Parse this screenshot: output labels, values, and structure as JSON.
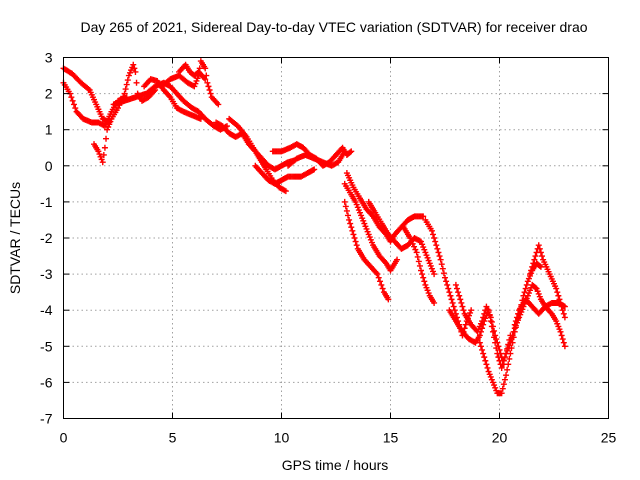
{
  "chart_data": {
    "type": "scatter",
    "title": "Day 265 of 2021, Sidereal Day-to-day VTEC variation (SDTVAR) for receiver drao",
    "xlabel": "GPS time / hours",
    "ylabel": "SDTVAR / TECUs",
    "xlim": [
      0,
      25
    ],
    "ylim": [
      -7,
      3
    ],
    "xticks": [
      "0",
      "5",
      "10",
      "15",
      "20",
      "25"
    ],
    "yticks": [
      "-7",
      "-6",
      "-5",
      "-4",
      "-3",
      "-2",
      "-1",
      "0",
      "1",
      "2",
      "3"
    ],
    "grid": true,
    "marker": "+",
    "color": "#ff0000",
    "series": [
      {
        "name": "SDTVAR",
        "segments": [
          [
            [
              0.0,
              2.7
            ],
            [
              0.4,
              2.55
            ],
            [
              0.8,
              2.3
            ],
            [
              1.2,
              2.1
            ],
            [
              1.5,
              1.7
            ],
            [
              1.8,
              1.3
            ],
            [
              2.1,
              1.2
            ]
          ],
          [
            [
              0.0,
              2.3
            ],
            [
              0.3,
              2.0
            ],
            [
              0.6,
              1.5
            ],
            [
              0.9,
              1.3
            ],
            [
              1.3,
              1.2
            ],
            [
              1.6,
              1.2
            ],
            [
              1.9,
              1.1
            ],
            [
              2.2,
              1.5
            ],
            [
              2.5,
              1.8
            ],
            [
              2.9,
              1.9
            ]
          ],
          [
            [
              1.4,
              0.6
            ],
            [
              1.6,
              0.4
            ],
            [
              1.8,
              0.1
            ],
            [
              1.9,
              0.5
            ],
            [
              2.0,
              1.0
            ],
            [
              2.2,
              1.3
            ],
            [
              2.5,
              1.6
            ],
            [
              2.8,
              2.0
            ],
            [
              3.0,
              2.5
            ],
            [
              3.2,
              2.8
            ],
            [
              3.3,
              2.6
            ],
            [
              3.4,
              2.0
            ],
            [
              3.6,
              1.8
            ],
            [
              3.9,
              1.9
            ],
            [
              4.2,
              2.1
            ]
          ],
          [
            [
              2.3,
              1.7
            ],
            [
              2.8,
              1.8
            ],
            [
              3.3,
              1.9
            ],
            [
              3.8,
              2.0
            ],
            [
              4.2,
              2.2
            ],
            [
              4.6,
              2.3
            ],
            [
              4.9,
              2.2
            ],
            [
              5.2,
              2.0
            ],
            [
              5.5,
              1.8
            ],
            [
              5.9,
              1.6
            ],
            [
              6.2,
              1.5
            ],
            [
              6.5,
              1.3
            ],
            [
              6.9,
              1.1
            ],
            [
              7.2,
              1.0
            ],
            [
              7.5,
              1.1
            ]
          ],
          [
            [
              3.7,
              2.2
            ],
            [
              4.0,
              2.4
            ],
            [
              4.3,
              2.35
            ],
            [
              4.6,
              2.1
            ],
            [
              4.9,
              1.9
            ],
            [
              5.2,
              1.6
            ],
            [
              5.5,
              1.5
            ],
            [
              5.9,
              1.4
            ],
            [
              6.3,
              1.3
            ]
          ],
          [
            [
              4.5,
              2.2
            ],
            [
              4.9,
              2.4
            ],
            [
              5.3,
              2.5
            ],
            [
              5.7,
              2.3
            ],
            [
              6.0,
              2.2
            ],
            [
              6.2,
              2.5
            ],
            [
              6.3,
              2.9
            ],
            [
              6.5,
              2.7
            ],
            [
              6.6,
              2.3
            ],
            [
              6.8,
              1.9
            ],
            [
              7.1,
              1.7
            ]
          ],
          [
            [
              5.3,
              2.6
            ],
            [
              5.6,
              2.8
            ],
            [
              5.8,
              2.6
            ],
            [
              6.0,
              2.5
            ],
            [
              6.2,
              2.6
            ],
            [
              6.5,
              2.4
            ]
          ],
          [
            [
              7.0,
              1.2
            ],
            [
              7.3,
              1.1
            ],
            [
              7.6,
              0.9
            ],
            [
              7.9,
              0.8
            ],
            [
              8.2,
              0.9
            ],
            [
              8.5,
              0.6
            ],
            [
              8.8,
              0.4
            ],
            [
              9.1,
              0.2
            ],
            [
              9.4,
              0.0
            ],
            [
              9.7,
              -0.1
            ],
            [
              10.0,
              0.0
            ],
            [
              10.3,
              0.1
            ],
            [
              10.6,
              0.15
            ]
          ],
          [
            [
              7.6,
              1.3
            ],
            [
              8.0,
              1.1
            ],
            [
              8.4,
              0.8
            ],
            [
              8.7,
              0.5
            ],
            [
              9.0,
              0.2
            ],
            [
              9.3,
              -0.1
            ],
            [
              9.6,
              -0.4
            ],
            [
              9.9,
              -0.6
            ],
            [
              10.2,
              -0.7
            ]
          ],
          [
            [
              8.8,
              0.0
            ],
            [
              9.1,
              -0.2
            ],
            [
              9.4,
              -0.4
            ],
            [
              9.7,
              -0.5
            ],
            [
              10.0,
              -0.4
            ],
            [
              10.3,
              -0.3
            ],
            [
              10.6,
              -0.3
            ],
            [
              10.9,
              -0.3
            ],
            [
              11.2,
              -0.2
            ],
            [
              11.5,
              -0.1
            ]
          ],
          [
            [
              9.6,
              0.4
            ],
            [
              10.0,
              0.4
            ],
            [
              10.4,
              0.5
            ],
            [
              10.7,
              0.6
            ],
            [
              11.0,
              0.5
            ],
            [
              11.3,
              0.3
            ],
            [
              11.6,
              0.2
            ],
            [
              11.9,
              0.0
            ],
            [
              12.2,
              0.1
            ],
            [
              12.5,
              0.3
            ],
            [
              12.8,
              0.5
            ],
            [
              13.0,
              0.3
            ],
            [
              13.2,
              0.4
            ]
          ],
          [
            [
              10.3,
              0.0
            ],
            [
              10.7,
              0.2
            ],
            [
              11.1,
              0.3
            ],
            [
              11.5,
              0.2
            ],
            [
              11.9,
              0.1
            ],
            [
              12.3,
              0.0
            ],
            [
              12.6,
              0.1
            ],
            [
              12.8,
              0.3
            ],
            [
              12.9,
              0.4
            ]
          ],
          [
            [
              12.9,
              -0.5
            ],
            [
              13.2,
              -0.8
            ],
            [
              13.4,
              -1.0
            ],
            [
              13.6,
              -1.3
            ],
            [
              13.8,
              -1.6
            ],
            [
              14.0,
              -1.9
            ],
            [
              14.2,
              -2.2
            ],
            [
              14.5,
              -2.5
            ],
            [
              14.8,
              -2.7
            ],
            [
              15.0,
              -2.9
            ],
            [
              15.3,
              -2.6
            ]
          ],
          [
            [
              12.9,
              -1.0
            ],
            [
              13.1,
              -1.5
            ],
            [
              13.3,
              -1.9
            ],
            [
              13.5,
              -2.3
            ],
            [
              13.8,
              -2.6
            ],
            [
              14.1,
              -2.8
            ],
            [
              14.4,
              -3.0
            ],
            [
              14.7,
              -3.5
            ],
            [
              14.9,
              -3.7
            ]
          ],
          [
            [
              13.0,
              -0.2
            ],
            [
              13.3,
              -0.6
            ],
            [
              13.6,
              -0.9
            ],
            [
              13.9,
              -1.2
            ],
            [
              14.2,
              -1.4
            ],
            [
              14.5,
              -1.7
            ],
            [
              14.8,
              -1.9
            ],
            [
              15.0,
              -2.1
            ],
            [
              15.2,
              -1.9
            ],
            [
              15.5,
              -1.7
            ],
            [
              15.8,
              -1.5
            ],
            [
              16.1,
              -1.4
            ],
            [
              16.5,
              -1.4
            ]
          ],
          [
            [
              14.0,
              -1.0
            ],
            [
              14.3,
              -1.3
            ],
            [
              14.6,
              -1.6
            ],
            [
              14.9,
              -1.9
            ],
            [
              15.2,
              -2.1
            ],
            [
              15.5,
              -2.3
            ],
            [
              15.8,
              -2.2
            ],
            [
              16.1,
              -2.0
            ],
            [
              16.4,
              -2.1
            ],
            [
              16.6,
              -2.4
            ],
            [
              16.8,
              -2.7
            ],
            [
              17.0,
              -3.0
            ]
          ],
          [
            [
              15.6,
              -1.7
            ],
            [
              15.9,
              -2.0
            ],
            [
              16.2,
              -2.4
            ],
            [
              16.4,
              -2.9
            ],
            [
              16.6,
              -3.3
            ],
            [
              16.8,
              -3.6
            ],
            [
              17.0,
              -3.8
            ]
          ],
          [
            [
              16.6,
              -1.5
            ],
            [
              16.9,
              -1.8
            ],
            [
              17.1,
              -2.2
            ],
            [
              17.3,
              -2.6
            ],
            [
              17.5,
              -3.1
            ],
            [
              17.7,
              -3.5
            ],
            [
              17.9,
              -3.9
            ],
            [
              18.1,
              -4.3
            ],
            [
              18.3,
              -4.7
            ],
            [
              18.5,
              -4.3
            ],
            [
              18.7,
              -4.0
            ]
          ],
          [
            [
              17.7,
              -4.0
            ],
            [
              18.0,
              -4.3
            ],
            [
              18.3,
              -4.6
            ],
            [
              18.6,
              -4.8
            ],
            [
              18.9,
              -4.9
            ],
            [
              19.1,
              -4.7
            ],
            [
              19.3,
              -4.3
            ],
            [
              19.5,
              -4.0
            ],
            [
              19.7,
              -4.6
            ],
            [
              19.9,
              -5.2
            ],
            [
              20.1,
              -5.6
            ],
            [
              20.3,
              -5.2
            ],
            [
              20.5,
              -4.7
            ]
          ],
          [
            [
              18.0,
              -3.3
            ],
            [
              18.2,
              -3.7
            ],
            [
              18.4,
              -4.1
            ],
            [
              18.7,
              -4.4
            ],
            [
              19.0,
              -4.6
            ],
            [
              19.2,
              -4.3
            ],
            [
              19.4,
              -3.9
            ],
            [
              19.6,
              -4.2
            ],
            [
              19.8,
              -4.7
            ],
            [
              20.0,
              -5.1
            ],
            [
              20.2,
              -5.5
            ]
          ],
          [
            [
              19.1,
              -4.9
            ],
            [
              19.3,
              -5.3
            ],
            [
              19.5,
              -5.7
            ],
            [
              19.7,
              -6.0
            ],
            [
              19.9,
              -6.3
            ],
            [
              20.1,
              -6.3
            ],
            [
              20.3,
              -5.8
            ],
            [
              20.5,
              -5.2
            ],
            [
              20.7,
              -4.6
            ],
            [
              20.9,
              -4.1
            ],
            [
              21.1,
              -3.6
            ],
            [
              21.3,
              -3.2
            ],
            [
              21.5,
              -2.9
            ],
            [
              21.7,
              -2.7
            ],
            [
              21.9,
              -2.8
            ]
          ],
          [
            [
              20.3,
              -5.2
            ],
            [
              20.5,
              -4.9
            ],
            [
              20.7,
              -4.5
            ],
            [
              20.9,
              -4.2
            ],
            [
              21.1,
              -3.9
            ],
            [
              21.3,
              -3.6
            ],
            [
              21.5,
              -3.3
            ],
            [
              21.7,
              -3.4
            ],
            [
              21.9,
              -3.7
            ],
            [
              22.1,
              -3.9
            ],
            [
              22.4,
              -4.1
            ],
            [
              22.6,
              -4.3
            ],
            [
              22.8,
              -4.6
            ],
            [
              23.0,
              -5.0
            ]
          ],
          [
            [
              20.7,
              -4.4
            ],
            [
              20.9,
              -4.0
            ],
            [
              21.2,
              -3.7
            ],
            [
              21.5,
              -3.9
            ],
            [
              21.8,
              -4.1
            ],
            [
              22.1,
              -3.9
            ],
            [
              22.4,
              -3.8
            ],
            [
              22.7,
              -3.8
            ],
            [
              23.0,
              -3.9
            ]
          ],
          [
            [
              21.4,
              -3.0
            ],
            [
              21.6,
              -2.6
            ],
            [
              21.8,
              -2.2
            ],
            [
              22.0,
              -2.6
            ],
            [
              22.3,
              -3.0
            ],
            [
              22.6,
              -3.4
            ],
            [
              22.8,
              -3.8
            ],
            [
              23.0,
              -4.2
            ]
          ]
        ]
      }
    ]
  }
}
